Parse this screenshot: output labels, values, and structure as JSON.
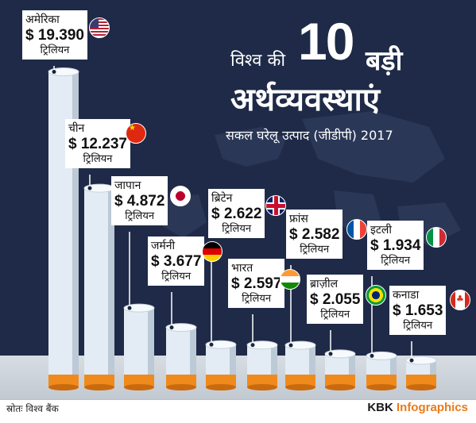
{
  "title": {
    "prefix": "विश्व की",
    "number": "10",
    "suffix": "बड़ी",
    "line2": "अर्थव्यवस्थाएं",
    "subtitle": "सकल घरेलू उत्पाद (जीडीपी) 2017"
  },
  "footer": {
    "source": "स्रोतः विश्व बैंक",
    "brand_main": "KBK ",
    "brand_accent": "Infographics"
  },
  "colors": {
    "background": "#1e2a47",
    "cylinder": "#e3ecf4",
    "cylinder_base": "#f08a1c",
    "card": "#ffffff",
    "card_dark": "#1b253e"
  },
  "chart_data": {
    "type": "bar",
    "title": "विश्व की 10 बड़ी अर्थव्यवस्थाएं",
    "subtitle": "सकल घरेलू उत्पाद (जीडीपी) 2017",
    "categories": [
      "अमेरिका",
      "चीन",
      "जापान",
      "जर्मनी",
      "ब्रिटेन",
      "भारत",
      "फ्रांस",
      "ब्राज़ील",
      "इटली",
      "कनाडा"
    ],
    "values": [
      19.39,
      12.237,
      4.872,
      3.677,
      2.622,
      2.597,
      2.582,
      2.055,
      1.934,
      1.653
    ],
    "value_labels": [
      "$ 19.390",
      "$ 12.237",
      "$ 4.872",
      "$ 3.677",
      "$ 2.622",
      "$ 2.597",
      "$ 2.582",
      "$ 2.055",
      "$ 1.934",
      "$ 1.653"
    ],
    "unit_label": "ट्रिलियन",
    "flags": [
      "us-flag-icon",
      "china-flag-icon",
      "japan-flag-icon",
      "germany-flag-icon",
      "uk-flag-icon",
      "india-flag-icon",
      "france-flag-icon",
      "brazil-flag-icon",
      "italy-flag-icon",
      "canada-flag-icon"
    ],
    "xlabel": "",
    "ylabel": "",
    "ylim": [
      0,
      20
    ]
  }
}
